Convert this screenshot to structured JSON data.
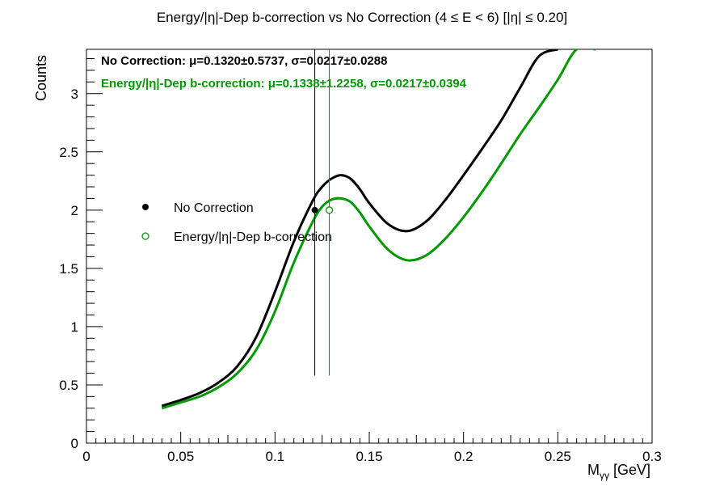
{
  "chart_data": {
    "type": "line",
    "title": "Energy/|η|-Dep b-correction vs No Correction   (4 ≤ E < 6)   [|η| ≤ 0.20]",
    "xlabel_main": "M",
    "xlabel_sub": "γγ",
    "xlabel_unit": " [GeV]",
    "ylabel": "Counts",
    "xlim": [
      0,
      0.3
    ],
    "ylim": [
      0,
      3.38
    ],
    "xticks": [
      0,
      0.05,
      0.1,
      0.15,
      0.2,
      0.25,
      0.3
    ],
    "xtick_labels": [
      "0",
      "0.05",
      "0.1",
      "0.15",
      "0.2",
      "0.25",
      "0.3"
    ],
    "yticks": [
      0,
      0.5,
      1,
      1.5,
      2,
      2.5,
      3
    ],
    "ytick_labels": [
      "0",
      "0.5",
      "1",
      "1.5",
      "2",
      "2.5",
      "3"
    ],
    "grid": false,
    "legend_position": "middle-left",
    "series": [
      {
        "name": "No Correction",
        "color": "#000000",
        "marker": "filled-circle",
        "stat_label": "No Correction:  μ=0.1320±0.5737,  σ=0.0217±0.0288",
        "point": {
          "x": 0.1211,
          "y": 2.0,
          "yerr_low": 0.58,
          "yerr_high": 3.38
        },
        "x": [
          0.04,
          0.05,
          0.06,
          0.07,
          0.08,
          0.09,
          0.1,
          0.11,
          0.12,
          0.125,
          0.13,
          0.135,
          0.14,
          0.145,
          0.15,
          0.16,
          0.17,
          0.18,
          0.19,
          0.2,
          0.21,
          0.22,
          0.23,
          0.24,
          0.25
        ],
        "y": [
          0.32,
          0.37,
          0.43,
          0.52,
          0.66,
          0.91,
          1.3,
          1.73,
          2.08,
          2.2,
          2.27,
          2.3,
          2.27,
          2.18,
          2.06,
          1.88,
          1.82,
          1.9,
          2.08,
          2.3,
          2.53,
          2.77,
          3.05,
          3.32,
          3.38
        ]
      },
      {
        "name": "Energy/|η|-Dep b-correction",
        "color": "#009900",
        "marker": "open-circle",
        "stat_label": "Energy/|η|-Dep b-correction:  μ=0.1338±1.2258,  σ=0.0217±0.0394",
        "point": {
          "x": 0.1288,
          "y": 2.0,
          "yerr_low": 0.58,
          "yerr_high": 3.38
        },
        "x": [
          0.04,
          0.05,
          0.06,
          0.07,
          0.08,
          0.09,
          0.1,
          0.11,
          0.12,
          0.125,
          0.13,
          0.135,
          0.14,
          0.145,
          0.15,
          0.16,
          0.17,
          0.18,
          0.19,
          0.2,
          0.21,
          0.22,
          0.23,
          0.24,
          0.25,
          0.26,
          0.27
        ],
        "y": [
          0.3,
          0.35,
          0.4,
          0.48,
          0.6,
          0.8,
          1.13,
          1.55,
          1.9,
          2.03,
          2.09,
          2.1,
          2.07,
          1.98,
          1.86,
          1.66,
          1.57,
          1.61,
          1.75,
          1.94,
          2.16,
          2.4,
          2.65,
          2.88,
          3.12,
          3.38,
          3.38
        ]
      }
    ]
  }
}
